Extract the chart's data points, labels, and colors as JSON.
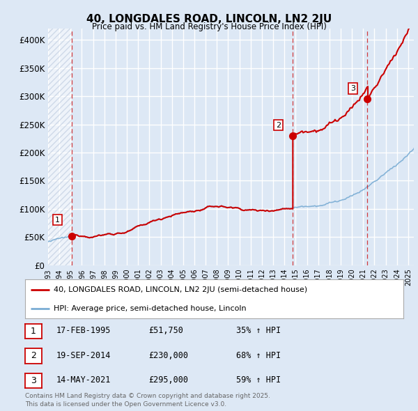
{
  "title": "40, LONGDALES ROAD, LINCOLN, LN2 2JU",
  "subtitle": "Price paid vs. HM Land Registry's House Price Index (HPI)",
  "background_color": "#dde8f5",
  "plot_bg_color": "#dde8f5",
  "hatch_color": "#b8c8dc",
  "ylim": [
    0,
    420000
  ],
  "yticks": [
    0,
    50000,
    100000,
    150000,
    200000,
    250000,
    300000,
    350000,
    400000
  ],
  "ytick_labels": [
    "£0",
    "£50K",
    "£100K",
    "£150K",
    "£200K",
    "£250K",
    "£300K",
    "£350K",
    "£400K"
  ],
  "red_line_color": "#cc0000",
  "blue_line_color": "#7aadd4",
  "sale_marker_color": "#cc0000",
  "dashed_line_color": "#cc0000",
  "xlim_start": 1993.0,
  "xlim_end": 2025.5,
  "transactions": [
    {
      "num": 1,
      "date_x": 1995.12,
      "price": 51750
    },
    {
      "num": 2,
      "date_x": 2014.72,
      "price": 230000
    },
    {
      "num": 3,
      "date_x": 2021.37,
      "price": 295000
    }
  ],
  "legend_label_red": "40, LONGDALES ROAD, LINCOLN, LN2 2JU (semi-detached house)",
  "legend_label_blue": "HPI: Average price, semi-detached house, Lincoln",
  "table_rows": [
    {
      "num": 1,
      "date": "17-FEB-1995",
      "price": "£51,750",
      "hpi": "35% ↑ HPI"
    },
    {
      "num": 2,
      "date": "19-SEP-2014",
      "price": "£230,000",
      "hpi": "68% ↑ HPI"
    },
    {
      "num": 3,
      "date": "14-MAY-2021",
      "price": "£295,000",
      "hpi": "59% ↑ HPI"
    }
  ],
  "footer": "Contains HM Land Registry data © Crown copyright and database right 2025.\nThis data is licensed under the Open Government Licence v3.0."
}
